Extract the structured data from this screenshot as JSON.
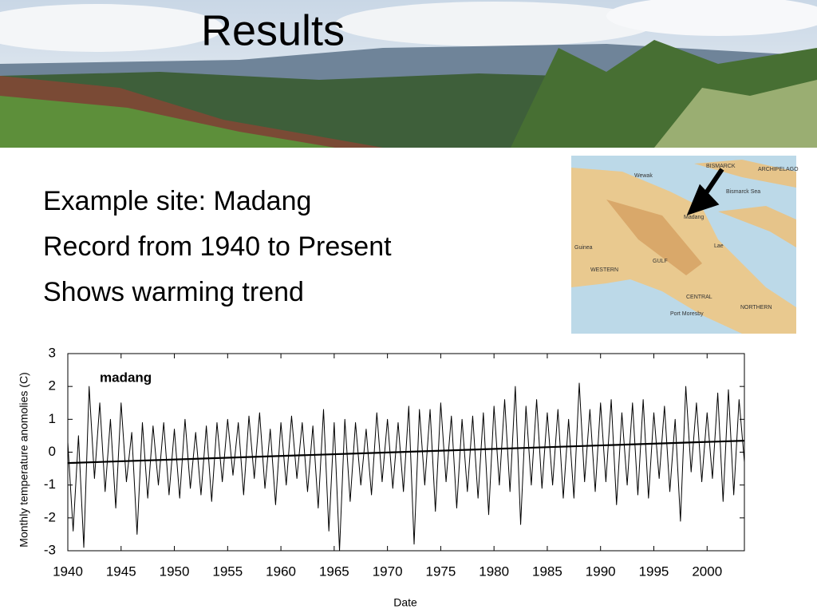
{
  "title": "Results",
  "bullets": [
    "Example site:  Madang",
    "Record from 1940 to Present",
    "Shows warming trend"
  ],
  "map_labels": [
    "Bismarck Sea",
    "Madang",
    "Wewak",
    "Guinea",
    "WESTERN",
    "GULF",
    "Lae",
    "CENTRAL",
    "NORTHERN",
    "Port Moresby",
    "BISMARCK",
    "ARCHIPELAGO"
  ],
  "chart_data": {
    "type": "line",
    "title": "madang",
    "xlabel": "Date",
    "ylabel": "Monthly temperature anomolies (C)",
    "xlim": [
      1940,
      2003.5
    ],
    "ylim": [
      -3,
      3
    ],
    "xticks": [
      1940,
      1945,
      1950,
      1955,
      1960,
      1965,
      1970,
      1975,
      1980,
      1985,
      1990,
      1995,
      2000
    ],
    "yticks": [
      -3,
      -2,
      -1,
      0,
      1,
      2,
      3
    ],
    "series": [
      {
        "color": "#000000",
        "x": [
          1940,
          1940.5,
          1941,
          1941.5,
          1942,
          1942.5,
          1943,
          1943.5,
          1944,
          1944.5,
          1945,
          1945.5,
          1946,
          1946.5,
          1947,
          1947.5,
          1948,
          1948.5,
          1949,
          1949.5,
          1950,
          1950.5,
          1951,
          1951.5,
          1952,
          1952.5,
          1953,
          1953.5,
          1954,
          1954.5,
          1955,
          1955.5,
          1956,
          1956.5,
          1957,
          1957.5,
          1958,
          1958.5,
          1959,
          1959.5,
          1960,
          1960.5,
          1961,
          1961.5,
          1962,
          1962.5,
          1963,
          1963.5,
          1964,
          1964.5,
          1965,
          1965.5,
          1966,
          1966.5,
          1967,
          1967.5,
          1968,
          1968.5,
          1969,
          1969.5,
          1970,
          1970.5,
          1971,
          1971.5,
          1972,
          1972.5,
          1973,
          1973.5,
          1974,
          1974.5,
          1975,
          1975.5,
          1976,
          1976.5,
          1977,
          1977.5,
          1978,
          1978.5,
          1979,
          1979.5,
          1980,
          1980.5,
          1981,
          1981.5,
          1982,
          1982.5,
          1983,
          1983.5,
          1984,
          1984.5,
          1985,
          1985.5,
          1986,
          1986.5,
          1987,
          1987.5,
          1988,
          1988.5,
          1989,
          1989.5,
          1990,
          1990.5,
          1991,
          1991.5,
          1992,
          1992.5,
          1993,
          1993.5,
          1994,
          1994.5,
          1995,
          1995.5,
          1996,
          1996.5,
          1997,
          1997.5,
          1998,
          1998.5,
          1999,
          1999.5,
          2000,
          2000.5,
          2001,
          2001.5,
          2002,
          2002.5,
          2003,
          2003.5
        ],
        "values": [
          0.3,
          -2.4,
          0.5,
          -2.9,
          2.0,
          -0.8,
          1.5,
          -1.2,
          1.0,
          -1.7,
          1.5,
          -0.9,
          0.6,
          -2.5,
          0.9,
          -1.4,
          0.8,
          -1.0,
          0.9,
          -1.3,
          0.7,
          -1.4,
          1.0,
          -1.1,
          0.6,
          -1.3,
          0.8,
          -1.5,
          0.9,
          -0.9,
          1.0,
          -0.7,
          0.9,
          -1.3,
          1.1,
          -0.8,
          1.2,
          -1.1,
          0.7,
          -1.6,
          0.9,
          -1.0,
          1.1,
          -0.8,
          0.9,
          -1.2,
          0.8,
          -1.7,
          1.3,
          -2.4,
          0.9,
          -3.0,
          1.0,
          -1.5,
          0.9,
          -1.0,
          0.7,
          -1.3,
          1.2,
          -0.9,
          1.0,
          -1.1,
          0.9,
          -1.2,
          1.4,
          -2.8,
          1.3,
          -1.0,
          1.3,
          -1.8,
          1.5,
          -0.9,
          1.1,
          -1.7,
          1.0,
          -1.2,
          1.1,
          -1.4,
          1.2,
          -1.9,
          1.4,
          -1.0,
          1.6,
          -1.2,
          2.0,
          -2.2,
          1.4,
          -1.0,
          1.6,
          -1.1,
          1.2,
          -1.0,
          1.3,
          -1.4,
          1.0,
          -1.4,
          2.1,
          -0.9,
          1.3,
          -1.2,
          1.5,
          -0.9,
          1.6,
          -1.6,
          1.2,
          -1.0,
          1.5,
          -1.3,
          1.6,
          -1.4,
          1.2,
          -0.8,
          1.4,
          -1.2,
          1.0,
          -2.1,
          2.0,
          -0.6,
          1.5,
          -0.9,
          1.2,
          -0.8,
          1.8,
          -1.5,
          1.9,
          -1.3,
          1.6,
          -0.3
        ]
      },
      {
        "color": "#000000",
        "x": [
          1940,
          2003.5
        ],
        "values": [
          -0.33,
          0.35
        ]
      }
    ]
  }
}
